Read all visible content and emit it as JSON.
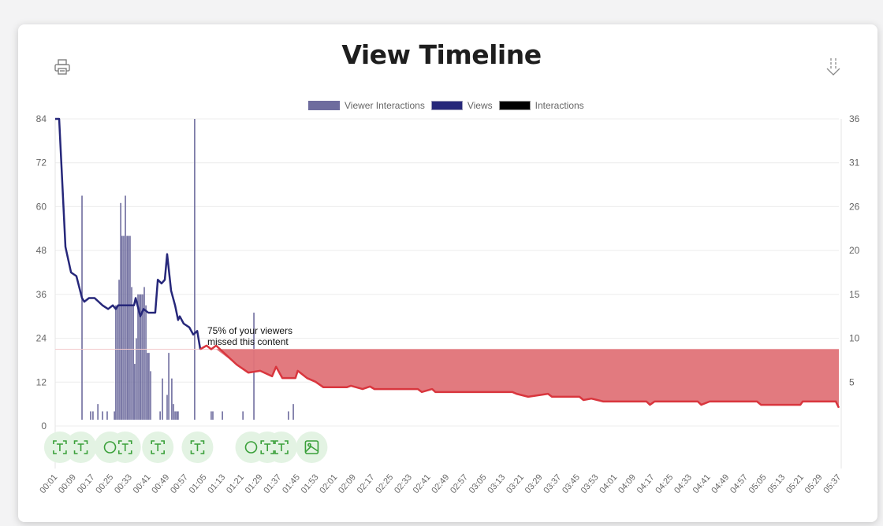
{
  "header": {
    "title": "View Timeline",
    "print_icon": "printer-icon",
    "download_icon": "download-icon"
  },
  "legend": [
    {
      "label": "Viewer Interactions",
      "color": "#6e6c9e"
    },
    {
      "label": "Views",
      "color": "#26277a"
    },
    {
      "label": "Interactions",
      "color": "#000000"
    }
  ],
  "colors": {
    "views": "#26277a",
    "bars": "#6e6c9e",
    "missed": "#d9363e",
    "missed_fill": "#e07378",
    "marker_bg": "#e3f3e3",
    "marker_fg": "#3aa03a"
  },
  "annotation": {
    "line1": "75% of your viewers",
    "line2": "missed this content"
  },
  "chart_data": {
    "type": "line",
    "title": "View Timeline",
    "x_range_seconds": [
      1,
      337
    ],
    "x_tick_labels": [
      "00:01",
      "00:09",
      "00:17",
      "00:25",
      "00:33",
      "00:41",
      "00:49",
      "00:57",
      "01:05",
      "01:13",
      "01:21",
      "01:29",
      "01:37",
      "01:45",
      "01:53",
      "02:01",
      "02:09",
      "02:17",
      "02:25",
      "02:33",
      "02:41",
      "02:49",
      "02:57",
      "03:05",
      "03:13",
      "03:21",
      "03:29",
      "03:37",
      "03:45",
      "03:53",
      "04:01",
      "04:09",
      "04:17",
      "04:25",
      "04:33",
      "04:41",
      "04:49",
      "04:57",
      "05:05",
      "05:13",
      "05:21",
      "05:29",
      "05:37"
    ],
    "left_axis": {
      "ylim": [
        0,
        84
      ],
      "ticks": [
        "0",
        "12",
        "24",
        "36",
        "48",
        "60",
        "72",
        "84"
      ]
    },
    "right_axis": {
      "ticks": [
        "",
        "5",
        "10",
        "15",
        "20",
        "26",
        "31",
        "36"
      ]
    },
    "missed_threshold": 21,
    "views": [
      [
        1,
        84
      ],
      [
        2.7,
        84
      ],
      [
        5.4,
        49
      ],
      [
        7.8,
        42
      ],
      [
        10.1,
        41
      ],
      [
        12.5,
        35
      ],
      [
        13.5,
        34
      ],
      [
        15.5,
        35
      ],
      [
        17.9,
        35
      ],
      [
        19.6,
        34
      ],
      [
        21.3,
        33
      ],
      [
        23.7,
        32
      ],
      [
        25.7,
        33
      ],
      [
        27,
        32
      ],
      [
        28,
        33
      ],
      [
        34.8,
        33
      ],
      [
        35.5,
        35
      ],
      [
        37.5,
        30
      ],
      [
        38.9,
        32
      ],
      [
        40.9,
        31
      ],
      [
        43.9,
        31
      ],
      [
        45,
        40
      ],
      [
        46.6,
        39
      ],
      [
        48,
        40
      ],
      [
        49,
        47
      ],
      [
        50.7,
        37
      ],
      [
        52.4,
        33
      ],
      [
        53.7,
        29
      ],
      [
        54.4,
        30
      ],
      [
        56.1,
        28
      ],
      [
        58.5,
        27
      ],
      [
        60.2,
        25
      ],
      [
        61.9,
        26
      ],
      [
        63.2,
        21
      ],
      [
        65.9,
        22
      ],
      [
        67.9,
        21
      ],
      [
        70,
        22
      ],
      [
        78.8,
        16.8
      ],
      [
        83.8,
        14.6
      ],
      [
        88.9,
        15.1
      ],
      [
        94,
        13.6
      ],
      [
        95.7,
        16.2
      ],
      [
        98.4,
        13.1
      ],
      [
        104,
        13.1
      ],
      [
        105,
        15.1
      ],
      [
        109,
        13.1
      ],
      [
        112.6,
        12.1
      ],
      [
        116,
        10.6
      ],
      [
        126,
        10.6
      ],
      [
        127.8,
        11
      ],
      [
        132.8,
        10.1
      ],
      [
        136,
        10.8
      ],
      [
        137.9,
        10.1
      ],
      [
        156.5,
        10.1
      ],
      [
        158.2,
        9.3
      ],
      [
        162.6,
        10.1
      ],
      [
        164,
        9.3
      ],
      [
        197,
        9.3
      ],
      [
        198.8,
        8.8
      ],
      [
        203.8,
        8
      ],
      [
        212.3,
        8.8
      ],
      [
        214,
        8
      ],
      [
        225.8,
        8
      ],
      [
        227.5,
        7.1
      ],
      [
        230.9,
        7.5
      ],
      [
        236,
        6.7
      ],
      [
        254.5,
        6.7
      ],
      [
        256,
        5.8
      ],
      [
        258,
        6.7
      ],
      [
        276.5,
        6.7
      ],
      [
        278,
        5.8
      ],
      [
        281.6,
        6.7
      ],
      [
        301.9,
        6.7
      ],
      [
        303.6,
        5.8
      ],
      [
        320.5,
        5.8
      ],
      [
        321.5,
        6.7
      ],
      [
        335.7,
        6.7
      ],
      [
        337,
        5
      ]
    ],
    "viewer_interactions": [
      [
        12.5,
        63
      ],
      [
        16.2,
        4
      ],
      [
        17.2,
        4
      ],
      [
        19.3,
        6
      ],
      [
        21.3,
        4
      ],
      [
        23.3,
        4
      ],
      [
        26.4,
        4
      ],
      [
        27,
        33
      ],
      [
        27.7,
        33
      ],
      [
        28.4,
        40
      ],
      [
        29.1,
        61
      ],
      [
        29.7,
        52
      ],
      [
        30.4,
        52
      ],
      [
        31.1,
        63
      ],
      [
        31.8,
        52
      ],
      [
        32.4,
        52
      ],
      [
        33.1,
        52
      ],
      [
        33.8,
        38
      ],
      [
        34.5,
        33
      ],
      [
        35.1,
        17
      ],
      [
        35.8,
        24
      ],
      [
        36.5,
        36
      ],
      [
        37.2,
        36
      ],
      [
        37.8,
        36
      ],
      [
        38.5,
        36
      ],
      [
        39.2,
        38
      ],
      [
        39.9,
        33
      ],
      [
        40.6,
        20
      ],
      [
        41.2,
        20
      ],
      [
        41.9,
        15
      ],
      [
        46,
        4
      ],
      [
        47,
        13
      ],
      [
        49,
        8.5
      ],
      [
        49.7,
        20
      ],
      [
        51,
        13
      ],
      [
        51.7,
        6
      ],
      [
        52.4,
        4
      ],
      [
        53.1,
        4
      ],
      [
        53.7,
        4
      ],
      [
        60.8,
        84
      ],
      [
        67.9,
        4
      ],
      [
        68.6,
        4
      ],
      [
        72.7,
        4
      ],
      [
        81.5,
        4
      ],
      [
        86.2,
        31
      ],
      [
        101,
        4
      ],
      [
        103.1,
        6
      ]
    ],
    "content_markers": [
      {
        "t": 3,
        "type": "text"
      },
      {
        "t": 12,
        "type": "text"
      },
      {
        "t": 24.5,
        "type": "quiz"
      },
      {
        "t": 31,
        "type": "text"
      },
      {
        "t": 45,
        "type": "text"
      },
      {
        "t": 62,
        "type": "text"
      },
      {
        "t": 85,
        "type": "quiz"
      },
      {
        "t": 92,
        "type": "text"
      },
      {
        "t": 98,
        "type": "text"
      },
      {
        "t": 111,
        "type": "image"
      }
    ]
  }
}
